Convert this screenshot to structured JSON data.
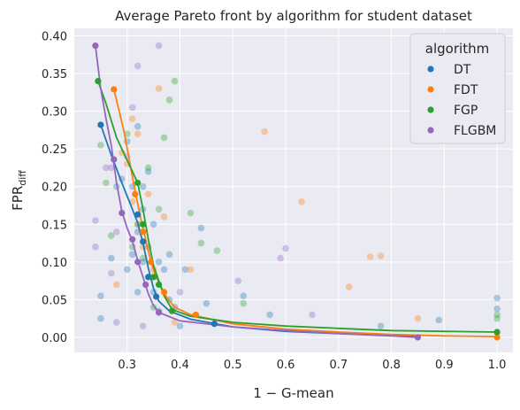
{
  "chart_data": {
    "type": "scatter",
    "title": "Average Pareto front by algorithm for student dataset",
    "xlabel": "1 − G-mean",
    "ylabel_main": "FPR",
    "ylabel_sub": "diff",
    "xlim": [
      0.2,
      1.03
    ],
    "ylim": [
      -0.02,
      0.41
    ],
    "xticks": [
      0.3,
      0.4,
      0.5,
      0.6,
      0.7,
      0.8,
      0.9,
      1.0
    ],
    "xtick_labels": [
      "0.3",
      "0.4",
      "0.5",
      "0.6",
      "0.7",
      "0.8",
      "0.9",
      "1.0"
    ],
    "yticks": [
      0.0,
      0.05,
      0.1,
      0.15,
      0.2,
      0.25,
      0.3,
      0.35,
      0.4
    ],
    "ytick_labels": [
      "0.00",
      "0.05",
      "0.10",
      "0.15",
      "0.20",
      "0.25",
      "0.30",
      "0.35",
      "0.40"
    ],
    "grid": true,
    "legend": {
      "title": "algorithm",
      "placement": "top-right"
    },
    "series": [
      {
        "name": "DT",
        "color": "#1f77b4",
        "front": [
          [
            0.25,
            0.282
          ],
          [
            0.32,
            0.163
          ],
          [
            0.33,
            0.127
          ],
          [
            0.34,
            0.08
          ],
          [
            0.355,
            0.054
          ],
          [
            0.465,
            0.018
          ]
        ],
        "curve": [
          [
            0.25,
            0.282
          ],
          [
            0.27,
            0.242
          ],
          [
            0.29,
            0.205
          ],
          [
            0.31,
            0.17
          ],
          [
            0.32,
            0.152
          ],
          [
            0.33,
            0.125
          ],
          [
            0.34,
            0.092
          ],
          [
            0.35,
            0.065
          ],
          [
            0.36,
            0.048
          ],
          [
            0.38,
            0.035
          ],
          [
            0.42,
            0.024
          ],
          [
            0.5,
            0.014
          ],
          [
            0.6,
            0.008
          ],
          [
            0.7,
            0.005
          ],
          [
            0.8,
            0.003
          ],
          [
            0.85,
            0.002
          ]
        ],
        "cloud": [
          [
            0.25,
            0.055
          ],
          [
            0.25,
            0.025
          ],
          [
            0.27,
            0.105
          ],
          [
            0.28,
            0.2
          ],
          [
            0.29,
            0.21
          ],
          [
            0.3,
            0.26
          ],
          [
            0.3,
            0.09
          ],
          [
            0.31,
            0.11
          ],
          [
            0.31,
            0.2
          ],
          [
            0.32,
            0.28
          ],
          [
            0.32,
            0.14
          ],
          [
            0.32,
            0.06
          ],
          [
            0.33,
            0.2
          ],
          [
            0.33,
            0.17
          ],
          [
            0.33,
            0.1
          ],
          [
            0.34,
            0.22
          ],
          [
            0.34,
            0.12
          ],
          [
            0.35,
            0.15
          ],
          [
            0.35,
            0.06
          ],
          [
            0.36,
            0.1
          ],
          [
            0.36,
            0.035
          ],
          [
            0.37,
            0.09
          ],
          [
            0.38,
            0.11
          ],
          [
            0.38,
            0.05
          ],
          [
            0.39,
            0.04
          ],
          [
            0.4,
            0.015
          ],
          [
            0.41,
            0.09
          ],
          [
            0.44,
            0.145
          ],
          [
            0.45,
            0.045
          ],
          [
            0.52,
            0.055
          ],
          [
            0.57,
            0.03
          ],
          [
            0.78,
            0.015
          ],
          [
            0.89,
            0.023
          ],
          [
            1.0,
            0.052
          ],
          [
            1.0,
            0.038
          ]
        ]
      },
      {
        "name": "FDT",
        "color": "#ff7f0e",
        "front": [
          [
            0.275,
            0.329
          ],
          [
            0.315,
            0.19
          ],
          [
            0.33,
            0.14
          ],
          [
            0.345,
            0.1
          ],
          [
            0.37,
            0.06
          ],
          [
            0.43,
            0.03
          ],
          [
            1.0,
            0.0
          ]
        ],
        "curve": [
          [
            0.275,
            0.329
          ],
          [
            0.285,
            0.3
          ],
          [
            0.295,
            0.27
          ],
          [
            0.305,
            0.232
          ],
          [
            0.315,
            0.195
          ],
          [
            0.325,
            0.16
          ],
          [
            0.335,
            0.13
          ],
          [
            0.345,
            0.1
          ],
          [
            0.355,
            0.08
          ],
          [
            0.365,
            0.066
          ],
          [
            0.375,
            0.053
          ],
          [
            0.39,
            0.04
          ],
          [
            0.42,
            0.03
          ],
          [
            0.5,
            0.018
          ],
          [
            0.6,
            0.011
          ],
          [
            0.7,
            0.007
          ],
          [
            0.8,
            0.004
          ],
          [
            0.9,
            0.002
          ],
          [
            1.0,
            0.001
          ]
        ],
        "cloud": [
          [
            0.28,
            0.07
          ],
          [
            0.29,
            0.245
          ],
          [
            0.3,
            0.23
          ],
          [
            0.31,
            0.29
          ],
          [
            0.31,
            0.18
          ],
          [
            0.32,
            0.27
          ],
          [
            0.32,
            0.15
          ],
          [
            0.33,
            0.12
          ],
          [
            0.34,
            0.19
          ],
          [
            0.35,
            0.09
          ],
          [
            0.36,
            0.33
          ],
          [
            0.37,
            0.16
          ],
          [
            0.39,
            0.02
          ],
          [
            0.42,
            0.09
          ],
          [
            0.56,
            0.273
          ],
          [
            0.63,
            0.18
          ],
          [
            0.72,
            0.067
          ],
          [
            0.76,
            0.107
          ],
          [
            0.78,
            0.108
          ],
          [
            0.85,
            0.025
          ]
        ]
      },
      {
        "name": "FGP",
        "color": "#2ca02c",
        "front": [
          [
            0.245,
            0.34
          ],
          [
            0.32,
            0.205
          ],
          [
            0.33,
            0.15
          ],
          [
            0.35,
            0.08
          ],
          [
            0.36,
            0.07
          ],
          [
            0.385,
            0.035
          ],
          [
            1.0,
            0.007
          ]
        ],
        "curve": [
          [
            0.245,
            0.34
          ],
          [
            0.26,
            0.31
          ],
          [
            0.28,
            0.265
          ],
          [
            0.3,
            0.235
          ],
          [
            0.32,
            0.205
          ],
          [
            0.33,
            0.17
          ],
          [
            0.34,
            0.13
          ],
          [
            0.35,
            0.095
          ],
          [
            0.36,
            0.075
          ],
          [
            0.37,
            0.055
          ],
          [
            0.385,
            0.037
          ],
          [
            0.42,
            0.028
          ],
          [
            0.5,
            0.02
          ],
          [
            0.6,
            0.015
          ],
          [
            0.7,
            0.012
          ],
          [
            0.8,
            0.009
          ],
          [
            0.9,
            0.008
          ],
          [
            1.0,
            0.007
          ]
        ],
        "cloud": [
          [
            0.25,
            0.255
          ],
          [
            0.26,
            0.205
          ],
          [
            0.27,
            0.135
          ],
          [
            0.3,
            0.27
          ],
          [
            0.31,
            0.12
          ],
          [
            0.32,
            0.15
          ],
          [
            0.33,
            0.105
          ],
          [
            0.34,
            0.225
          ],
          [
            0.35,
            0.04
          ],
          [
            0.36,
            0.17
          ],
          [
            0.37,
            0.265
          ],
          [
            0.38,
            0.315
          ],
          [
            0.39,
            0.34
          ],
          [
            0.42,
            0.165
          ],
          [
            0.44,
            0.125
          ],
          [
            0.47,
            0.115
          ],
          [
            0.52,
            0.045
          ],
          [
            1.0,
            0.03
          ],
          [
            1.0,
            0.025
          ]
        ]
      },
      {
        "name": "FLGBM",
        "color": "#9467bd",
        "front": [
          [
            0.24,
            0.387
          ],
          [
            0.275,
            0.236
          ],
          [
            0.29,
            0.165
          ],
          [
            0.31,
            0.13
          ],
          [
            0.32,
            0.1
          ],
          [
            0.335,
            0.07
          ],
          [
            0.36,
            0.033
          ],
          [
            0.85,
            0.0
          ]
        ],
        "curve": [
          [
            0.24,
            0.387
          ],
          [
            0.25,
            0.33
          ],
          [
            0.26,
            0.29
          ],
          [
            0.27,
            0.255
          ],
          [
            0.28,
            0.205
          ],
          [
            0.29,
            0.167
          ],
          [
            0.3,
            0.145
          ],
          [
            0.31,
            0.128
          ],
          [
            0.32,
            0.102
          ],
          [
            0.33,
            0.08
          ],
          [
            0.34,
            0.058
          ],
          [
            0.35,
            0.042
          ],
          [
            0.36,
            0.033
          ],
          [
            0.4,
            0.022
          ],
          [
            0.5,
            0.014
          ],
          [
            0.6,
            0.009
          ],
          [
            0.7,
            0.005
          ],
          [
            0.8,
            0.002
          ],
          [
            0.85,
            0.0
          ]
        ],
        "cloud": [
          [
            0.24,
            0.155
          ],
          [
            0.24,
            0.12
          ],
          [
            0.26,
            0.225
          ],
          [
            0.27,
            0.225
          ],
          [
            0.27,
            0.085
          ],
          [
            0.28,
            0.14
          ],
          [
            0.28,
            0.02
          ],
          [
            0.3,
            0.24
          ],
          [
            0.31,
            0.305
          ],
          [
            0.32,
            0.36
          ],
          [
            0.33,
            0.015
          ],
          [
            0.36,
            0.387
          ],
          [
            0.4,
            0.06
          ],
          [
            0.51,
            0.075
          ],
          [
            0.59,
            0.105
          ],
          [
            0.6,
            0.118
          ],
          [
            0.65,
            0.03
          ]
        ]
      }
    ]
  }
}
